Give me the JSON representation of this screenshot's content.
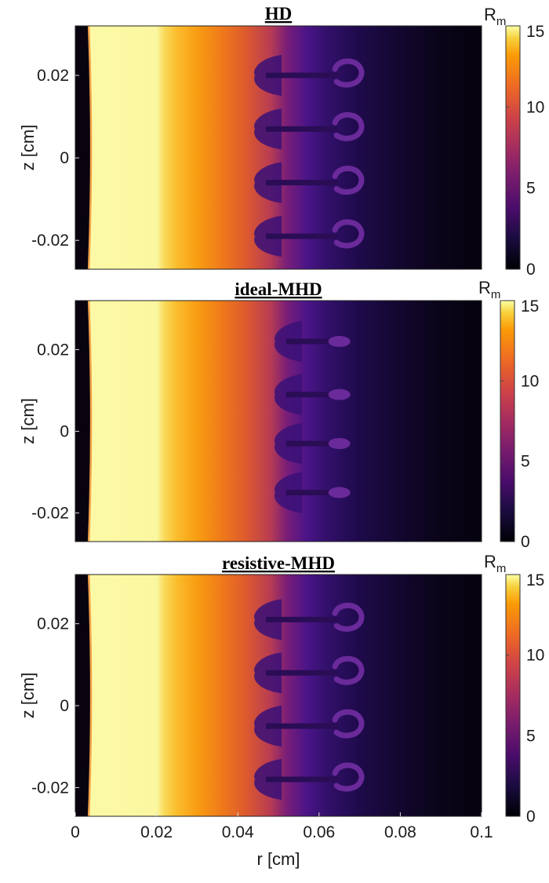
{
  "chart_data": [
    {
      "type": "heatmap",
      "title": "HD",
      "xlabel": "",
      "ylabel": "z [cm]",
      "xlim": [
        0,
        0.1
      ],
      "ylim": [
        -0.027,
        0.032
      ],
      "yticks": [
        "-0.02",
        "0",
        "0.02"
      ],
      "colorbar": {
        "label": "R",
        "label_sub": "m",
        "min": 0,
        "max": 15,
        "ticks": [
          "0",
          "5",
          "10",
          "15"
        ],
        "colormap": "inferno"
      },
      "features": {
        "bubble_z": [
          0.02,
          0.007,
          -0.006,
          -0.019
        ],
        "bubble_r": 0.067,
        "spike_tip_r": 0.045,
        "curl": true
      }
    },
    {
      "type": "heatmap",
      "title": "ideal-MHD",
      "xlabel": "",
      "ylabel": "z [cm]",
      "xlim": [
        0,
        0.1
      ],
      "ylim": [
        -0.027,
        0.032
      ],
      "yticks": [
        "-0.02",
        "0",
        "0.02"
      ],
      "colorbar": {
        "label": "R",
        "label_sub": "m",
        "min": 0,
        "max": 15,
        "ticks": [
          "0",
          "5",
          "10",
          "15"
        ],
        "colormap": "inferno"
      },
      "features": {
        "bubble_z": [
          0.022,
          0.009,
          -0.003,
          -0.015
        ],
        "bubble_r": 0.065,
        "spike_tip_r": 0.05,
        "curl": false
      }
    },
    {
      "type": "heatmap",
      "title": "resistive-MHD",
      "xlabel": "r [cm]",
      "ylabel": "z [cm]",
      "xlim": [
        0,
        0.1
      ],
      "ylim": [
        -0.027,
        0.032
      ],
      "xticks": [
        "0",
        "0.02",
        "0.04",
        "0.06",
        "0.08",
        "0.1"
      ],
      "yticks": [
        "-0.02",
        "0",
        "0.02"
      ],
      "colorbar": {
        "label": "R",
        "label_sub": "m",
        "min": 0,
        "max": 15,
        "ticks": [
          "0",
          "5",
          "10",
          "15"
        ],
        "colormap": "inferno"
      },
      "features": {
        "bubble_z": [
          0.021,
          0.008,
          -0.005,
          -0.018
        ],
        "bubble_r": 0.067,
        "spike_tip_r": 0.045,
        "curl": true
      }
    }
  ]
}
